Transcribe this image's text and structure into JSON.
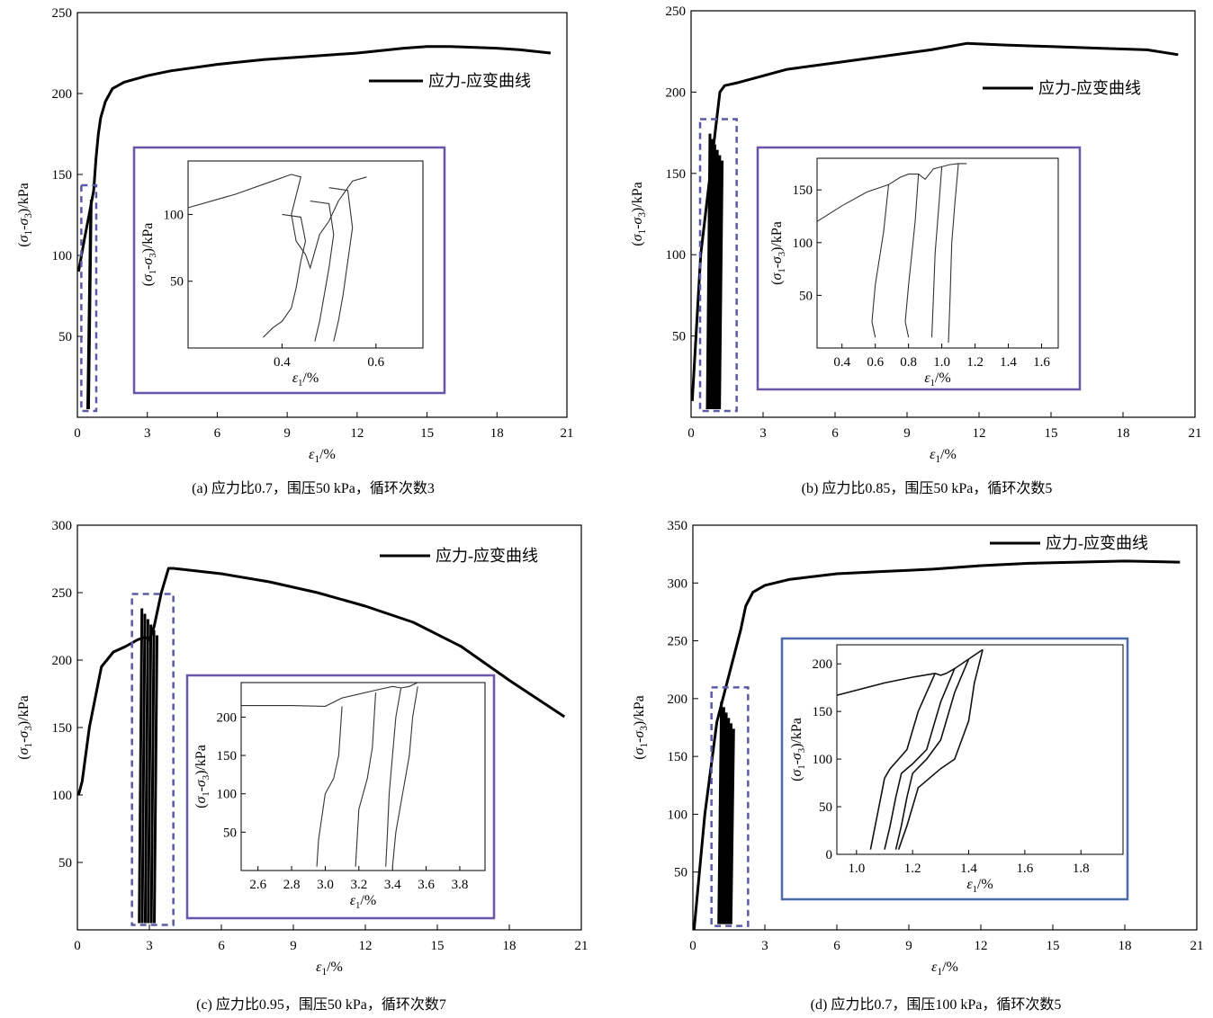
{
  "chart_data": [
    {
      "type": "line",
      "panel": "a",
      "caption": "(a) 应力比0.7，围压50 kPa，循环次数3",
      "legend": "应力-应变曲线",
      "ylabel": "(σ1-σ3)/kPa",
      "xlabel": "ε1/%",
      "xlim": [
        0,
        21
      ],
      "ylim": [
        0,
        250
      ],
      "xticks": [
        "0",
        "3",
        "6",
        "9",
        "12",
        "15",
        "18",
        "21"
      ],
      "yticks": [
        "50",
        "100",
        "150",
        "200",
        "250"
      ],
      "series": [
        {
          "x": [
            0.05,
            0.3,
            0.5,
            0.7,
            0.8,
            0.9,
            1.0,
            1.2,
            1.5,
            2.0,
            3.0,
            4.0,
            6.0,
            8.0,
            10.0,
            12.0,
            14.0,
            15.0,
            16.0,
            18.0,
            19.0,
            20.3
          ],
          "y": [
            90,
            110,
            125,
            140,
            160,
            175,
            185,
            195,
            203,
            207,
            211,
            214,
            218,
            221,
            223,
            225,
            228,
            229,
            229,
            228,
            227,
            225
          ]
        }
      ],
      "cycle_band": {
        "x": [
          0.4,
          0.5
        ],
        "y": [
          5,
          140
        ]
      },
      "inset": {
        "xlabel": "ε1/%",
        "ylabel": "(σ1-σ3)/kPa",
        "xlim": [
          0.2,
          0.7
        ],
        "ylim": [
          0,
          140
        ],
        "xticks": [
          "0.4",
          "0.6"
        ],
        "yticks": [
          "50",
          "100"
        ],
        "series": [
          {
            "x": [
              0.2,
              0.3,
              0.38,
              0.42,
              0.44,
              0.42,
              0.43,
              0.45,
              0.46,
              0.48,
              0.5,
              0.52,
              0.54,
              0.55,
              0.58
            ],
            "y": [
              105,
              115,
              125,
              130,
              128,
              100,
              80,
              70,
              60,
              85,
              95,
              110,
              120,
              125,
              128
            ]
          },
          {
            "x": [
              0.4,
              0.44,
              0.45,
              0.44,
              0.43,
              0.42,
              0.4,
              0.38,
              0.36
            ],
            "y": [
              100,
              98,
              80,
              65,
              45,
              30,
              20,
              15,
              8
            ]
          },
          {
            "x": [
              0.46,
              0.5,
              0.51,
              0.5,
              0.49,
              0.48,
              0.47
            ],
            "y": [
              110,
              108,
              85,
              60,
              40,
              20,
              5
            ]
          },
          {
            "x": [
              0.5,
              0.54,
              0.55,
              0.54,
              0.53,
              0.52,
              0.51
            ],
            "y": [
              120,
              118,
              90,
              65,
              40,
              20,
              5
            ]
          }
        ]
      }
    },
    {
      "type": "line",
      "panel": "b",
      "caption": "(b) 应力比0.85，围压50 kPa，循环次数5",
      "legend": "应力-应变曲线",
      "ylabel": "(σ1-σ3)/kPa",
      "xlabel": "ε1/%",
      "xlim": [
        0,
        21
      ],
      "ylim": [
        0,
        250
      ],
      "xticks": [
        "0",
        "3",
        "6",
        "9",
        "12",
        "15",
        "18",
        "21"
      ],
      "yticks": [
        "50",
        "100",
        "150",
        "200",
        "250"
      ],
      "series": [
        {
          "x": [
            0.05,
            0.4,
            0.8,
            1.0,
            1.2,
            1.4,
            2.0,
            3.0,
            4.0,
            6.0,
            8.0,
            10.0,
            11.5,
            13.0,
            15.0,
            17.0,
            19.0,
            20.3
          ],
          "y": [
            10,
            100,
            150,
            175,
            200,
            204,
            206,
            210,
            214,
            218,
            222,
            226,
            230,
            229,
            228,
            227,
            226,
            223
          ]
        }
      ],
      "cycle_band": {
        "x": [
          0.6,
          1.6
        ],
        "y": [
          5,
          180
        ]
      },
      "inset": {
        "xlabel": "ε1/%",
        "ylabel": "(σ1-σ3)/kPa",
        "xlim": [
          0.25,
          1.7
        ],
        "ylim": [
          0,
          180
        ],
        "xticks": [
          "0.4",
          "0.6",
          "0.8",
          "1.0",
          "1.2",
          "1.4",
          "1.6"
        ],
        "yticks": [
          "50",
          "100",
          "150"
        ],
        "series": [
          {
            "x": [
              0.25,
              0.4,
              0.55,
              0.68,
              0.75,
              0.8,
              0.86,
              0.9,
              0.95,
              1.0,
              1.05,
              1.1,
              1.15
            ],
            "y": [
              120,
              135,
              148,
              155,
              162,
              165,
              165,
              160,
              170,
              172,
              174,
              175,
              175
            ]
          },
          {
            "x": [
              0.68,
              0.65,
              0.62,
              0.6,
              0.58,
              0.6
            ],
            "y": [
              155,
              110,
              80,
              60,
              25,
              10
            ]
          },
          {
            "x": [
              0.86,
              0.84,
              0.82,
              0.8,
              0.78,
              0.8
            ],
            "y": [
              165,
              120,
              90,
              60,
              25,
              10
            ]
          },
          {
            "x": [
              1.0,
              0.98,
              0.96,
              0.95,
              0.94
            ],
            "y": [
              172,
              130,
              90,
              50,
              10
            ]
          },
          {
            "x": [
              1.1,
              1.08,
              1.06,
              1.05,
              1.04
            ],
            "y": [
              175,
              140,
              100,
              50,
              5
            ]
          }
        ]
      }
    },
    {
      "type": "line",
      "panel": "c",
      "caption": "(c) 应力比0.95，围压50 kPa，循环次数7",
      "legend": "应力-应变曲线",
      "ylabel": "(σ1-σ3)/kPa",
      "xlabel": "ε1/%",
      "xlim": [
        0,
        21
      ],
      "ylim": [
        0,
        300
      ],
      "xticks": [
        "0",
        "3",
        "6",
        "9",
        "12",
        "15",
        "18",
        "21"
      ],
      "yticks": [
        "50",
        "100",
        "150",
        "200",
        "250",
        "300"
      ],
      "series": [
        {
          "x": [
            0.05,
            0.2,
            0.5,
            1.0,
            1.5,
            2.0,
            2.5,
            2.8,
            3.0,
            3.2,
            3.5,
            3.8,
            4.0,
            5.0,
            6.0,
            8.0,
            10.0,
            12.0,
            14.0,
            16.0,
            18.0,
            20.3
          ],
          "y": [
            100,
            110,
            150,
            195,
            206,
            210,
            215,
            217,
            215,
            225,
            250,
            268,
            268,
            266,
            264,
            258,
            250,
            240,
            228,
            210,
            185,
            158
          ]
        }
      ],
      "cycle_band": {
        "x": [
          2.5,
          3.7
        ],
        "y": [
          5,
          245
        ]
      },
      "inset": {
        "xlabel": "ε1/%",
        "ylabel": "(σ1-σ3)/kPa",
        "xlim": [
          2.5,
          3.95
        ],
        "ylim": [
          0,
          245
        ],
        "xticks": [
          "2.6",
          "2.8",
          "3.0",
          "3.2",
          "3.4",
          "3.6",
          "3.8"
        ],
        "yticks": [
          "50",
          "100",
          "150",
          "200"
        ],
        "series": [
          {
            "x": [
              2.5,
              2.8,
              3.0,
              3.1,
              3.2,
              3.3,
              3.4,
              3.45,
              3.5,
              3.55
            ],
            "y": [
              215,
              215,
              214,
              225,
              230,
              235,
              240,
              238,
              240,
              245
            ]
          },
          {
            "x": [
              3.1,
              3.08,
              3.05,
              3.0,
              2.96,
              2.95
            ],
            "y": [
              214,
              150,
              120,
              100,
              40,
              5
            ]
          },
          {
            "x": [
              3.3,
              3.28,
              3.25,
              3.2,
              3.18
            ],
            "y": [
              232,
              160,
              120,
              80,
              5
            ]
          },
          {
            "x": [
              3.45,
              3.42,
              3.4,
              3.38,
              3.37,
              3.36
            ],
            "y": [
              238,
              200,
              150,
              100,
              50,
              5
            ]
          },
          {
            "x": [
              3.55,
              3.52,
              3.5,
              3.46,
              3.42,
              3.4
            ],
            "y": [
              240,
              200,
              150,
              100,
              50,
              5
            ]
          }
        ]
      }
    },
    {
      "type": "line",
      "panel": "d",
      "caption": "(d) 应力比0.7，围压100 kPa，循环次数5",
      "legend": "应力-应变曲线",
      "ylabel": "(σ1-σ3)/kPa",
      "xlabel": "ε1/%",
      "xlim": [
        0,
        21
      ],
      "ylim": [
        0,
        350
      ],
      "xticks": [
        "0",
        "3",
        "6",
        "9",
        "12",
        "15",
        "18",
        "21"
      ],
      "yticks": [
        "50",
        "100",
        "150",
        "200",
        "250",
        "300",
        "350"
      ],
      "series": [
        {
          "x": [
            0.05,
            0.5,
            1.0,
            1.5,
            2.0,
            2.2,
            2.5,
            3.0,
            4.0,
            6.0,
            8.0,
            10.0,
            12.0,
            14.0,
            16.0,
            18.0,
            20.3
          ],
          "y": [
            0,
            100,
            180,
            220,
            260,
            280,
            292,
            298,
            303,
            308,
            310,
            312,
            315,
            317,
            318,
            319,
            318
          ]
        }
      ],
      "cycle_band": {
        "x": [
          1.0,
          2.0
        ],
        "y": [
          5,
          205
        ]
      },
      "inset": {
        "xlabel": "ε1/%",
        "ylabel": "(σ1-σ3)/kPa",
        "xlim": [
          0.93,
          1.95
        ],
        "ylim": [
          0,
          220
        ],
        "xticks": [
          "1.0",
          "1.2",
          "1.4",
          "1.6",
          "1.8"
        ],
        "yticks": [
          "0",
          "50",
          "100",
          "150",
          "200"
        ],
        "series": [
          {
            "x": [
              0.93,
              1.1,
              1.2,
              1.28,
              1.3,
              1.32,
              1.35,
              1.4,
              1.45
            ],
            "y": [
              167,
              180,
              186,
              190,
              188,
              190,
              195,
              205,
              215
            ]
          },
          {
            "x": [
              1.28,
              1.22,
              1.18,
              1.15,
              1.12,
              1.1,
              1.08,
              1.06,
              1.05
            ],
            "y": [
              190,
              150,
              110,
              100,
              90,
              80,
              50,
              20,
              5
            ]
          },
          {
            "x": [
              1.35,
              1.3,
              1.25,
              1.2,
              1.16,
              1.14,
              1.12,
              1.1
            ],
            "y": [
              195,
              160,
              110,
              95,
              85,
              60,
              30,
              5
            ]
          },
          {
            "x": [
              1.4,
              1.35,
              1.3,
              1.25,
              1.2,
              1.18,
              1.16,
              1.14
            ],
            "y": [
              205,
              170,
              120,
              100,
              85,
              60,
              30,
              5
            ]
          },
          {
            "x": [
              1.45,
              1.42,
              1.4,
              1.35,
              1.3,
              1.22,
              1.18,
              1.15
            ],
            "y": [
              215,
              180,
              140,
              100,
              90,
              70,
              30,
              5
            ]
          }
        ]
      }
    }
  ]
}
